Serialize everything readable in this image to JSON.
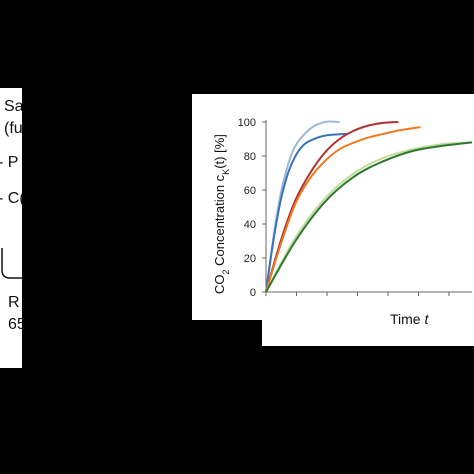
{
  "left_panel": {
    "fragments": [
      {
        "text": "Sa"
      },
      {
        "text": "(fu"
      },
      {
        "text": "- P"
      },
      {
        "text": "- C("
      },
      {
        "text": "R"
      },
      {
        "text": "65"
      }
    ]
  },
  "chart_data": {
    "type": "line",
    "ylabel_main": "CO",
    "ylabel_sub": "2",
    "ylabel_mid": " Concentration c",
    "ylabel_k": "K",
    "ylabel_end": "(t) [%]",
    "xlabel_main": "Time ",
    "xlabel_var": "t",
    "ylim": [
      0,
      100
    ],
    "yticks": [
      "0",
      "20",
      "40",
      "60",
      "80",
      "100"
    ],
    "grid": false,
    "series": [
      {
        "color": "#9db9d9",
        "x": [
          0,
          0.5,
          1,
          1.5,
          2,
          3,
          4,
          5
        ],
        "y": [
          0,
          32,
          58,
          75,
          86,
          96,
          100,
          100
        ]
      },
      {
        "color": "#3b73b5",
        "x": [
          0,
          0.5,
          1,
          1.5,
          2,
          2.5,
          3,
          4,
          5.5
        ],
        "y": [
          0,
          30,
          54,
          70,
          80,
          86,
          89,
          92,
          93
        ]
      },
      {
        "color": "#b23030",
        "x": [
          0,
          1,
          2,
          3,
          4,
          5,
          6,
          7,
          8,
          9
        ],
        "y": [
          0,
          30,
          54,
          70,
          82,
          90,
          95,
          98,
          99.5,
          100
        ]
      },
      {
        "color": "#ee7b22",
        "x": [
          0,
          1,
          2,
          3,
          4,
          5,
          6,
          7,
          8,
          9,
          10.5
        ],
        "y": [
          0,
          28,
          52,
          67,
          77,
          84,
          88,
          91,
          93,
          95,
          97
        ]
      },
      {
        "color": "#c5dc9d",
        "x": [
          0,
          2,
          4,
          6,
          8,
          10,
          12,
          14
        ],
        "y": [
          0,
          32,
          55,
          70,
          79,
          84,
          87,
          88
        ]
      },
      {
        "color": "#2c7a32",
        "x": [
          0,
          2,
          4,
          6,
          8,
          10,
          12,
          14
        ],
        "y": [
          0,
          30,
          53,
          68,
          77,
          83,
          86,
          88
        ]
      }
    ]
  }
}
